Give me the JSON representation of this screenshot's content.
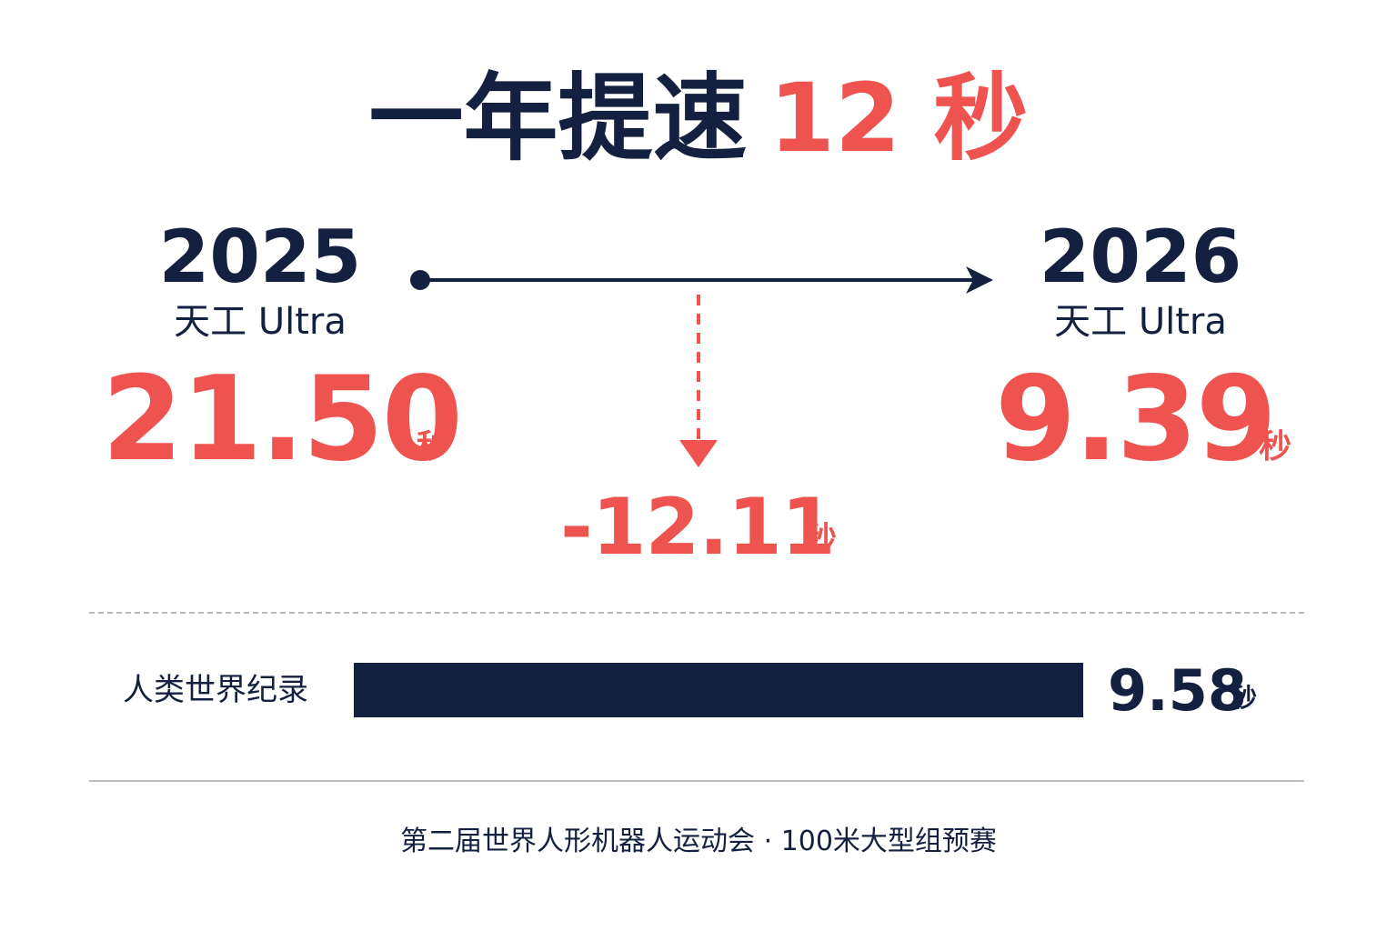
{
  "title": {
    "text": "一年提速",
    "highlight": "12 秒"
  },
  "left": {
    "year": "2025",
    "model": "天工 Ultra",
    "time": "21.50",
    "unit": "秒"
  },
  "right": {
    "year": "2026",
    "model": "天工 Ultra",
    "time": "9.39",
    "unit": "秒"
  },
  "delta": {
    "value": "-12.11",
    "unit": "秒"
  },
  "record": {
    "label": "人类世界纪录",
    "value": "9.58",
    "unit": "秒",
    "bar_fraction": 1.0
  },
  "footer": "第二届世界人形机器人运动会 · 100米大型组预赛",
  "colors": {
    "navy": "#13203f",
    "red": "#ef5350",
    "divider": "#b9bcc2"
  }
}
